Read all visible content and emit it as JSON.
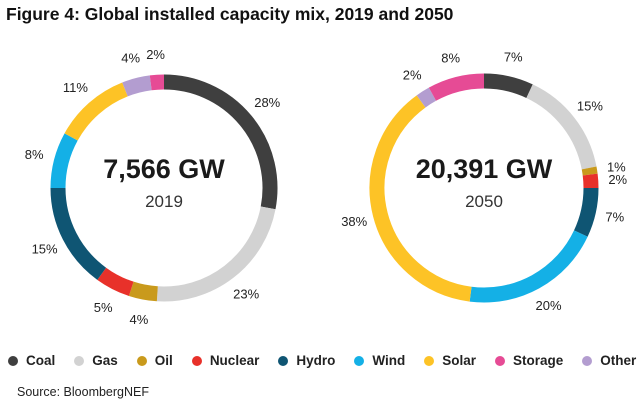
{
  "chart_data": {
    "type": "pie",
    "title": "Figure 4: Global installed capacity mix, 2019 and 2050",
    "categories": [
      "Coal",
      "Gas",
      "Oil",
      "Nuclear",
      "Hydro",
      "Wind",
      "Solar",
      "Storage",
      "Other"
    ],
    "colors": {
      "Coal": "#3f3f3f",
      "Gas": "#d2d2d2",
      "Oil": "#c99a1c",
      "Nuclear": "#e8312a",
      "Hydro": "#0f5573",
      "Wind": "#14b0e6",
      "Solar": "#fdc326",
      "Storage": "#e64b95",
      "Other": "#b39dd0"
    },
    "donuts": [
      {
        "total_label": "7,566 GW",
        "year_label": "2019",
        "slices": [
          {
            "category": "Coal",
            "value": 28,
            "label": "28%"
          },
          {
            "category": "Gas",
            "value": 23,
            "label": "23%"
          },
          {
            "category": "Oil",
            "value": 4,
            "label": "4%"
          },
          {
            "category": "Nuclear",
            "value": 5,
            "label": "5%"
          },
          {
            "category": "Hydro",
            "value": 15,
            "label": "15%"
          },
          {
            "category": "Wind",
            "value": 8,
            "label": "8%"
          },
          {
            "category": "Solar",
            "value": 11,
            "label": "11%"
          },
          {
            "category": "Other",
            "value": 4,
            "label": "4%"
          },
          {
            "category": "Storage",
            "value": 2,
            "label": "2%"
          }
        ]
      },
      {
        "total_label": "20,391 GW",
        "year_label": "2050",
        "slices": [
          {
            "category": "Coal",
            "value": 7,
            "label": "7%"
          },
          {
            "category": "Gas",
            "value": 15,
            "label": "15%"
          },
          {
            "category": "Oil",
            "value": 1,
            "label": "1%"
          },
          {
            "category": "Nuclear",
            "value": 2,
            "label": "2%"
          },
          {
            "category": "Hydro",
            "value": 7,
            "label": "7%"
          },
          {
            "category": "Wind",
            "value": 20,
            "label": "20%"
          },
          {
            "category": "Solar",
            "value": 38,
            "label": "38%"
          },
          {
            "category": "Other",
            "value": 2,
            "label": "2%"
          },
          {
            "category": "Storage",
            "value": 8,
            "label": "8%"
          }
        ]
      }
    ],
    "legend": [
      "Coal",
      "Gas",
      "Oil",
      "Nuclear",
      "Hydro",
      "Wind",
      "Solar",
      "Storage",
      "Other"
    ],
    "source": "Source: BloombergNEF"
  }
}
